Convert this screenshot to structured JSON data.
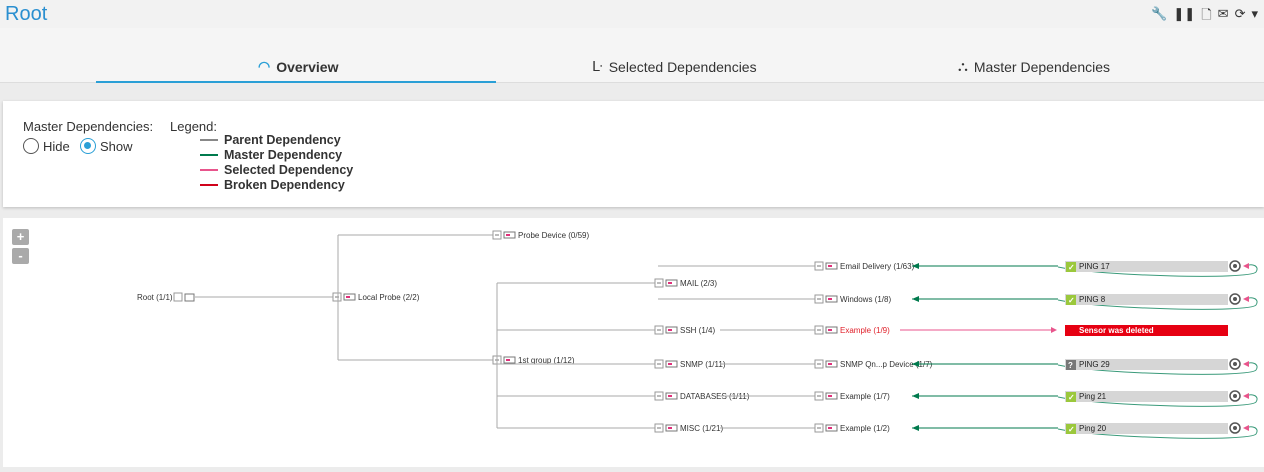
{
  "header": {
    "title": "Root",
    "icons": [
      "wrench-icon",
      "pause-icon",
      "add-document-icon",
      "mail-icon",
      "refresh-icon",
      "caret-down-icon"
    ]
  },
  "tabs": [
    {
      "label": "Overview",
      "icon": "gauge-icon",
      "active": true
    },
    {
      "label": "Selected Dependencies",
      "icon": "dependency-icon"
    },
    {
      "label": "Master Dependencies",
      "icon": "hierarchy-icon"
    }
  ],
  "options": {
    "master_label": "Master Dependencies:",
    "hide": "Hide",
    "show": "Show",
    "selected": "Show",
    "legend_label": "Legend:"
  },
  "legend": [
    {
      "label": "Parent Dependency",
      "color": "#888888"
    },
    {
      "label": "Master Dependency",
      "color": "#007a4d"
    },
    {
      "label": "Selected Dependency",
      "color": "#e8558c"
    },
    {
      "label": "Broken Dependency",
      "color": "#d0021b"
    }
  ],
  "zoom": {
    "in": "+",
    "out": "-"
  },
  "tree": {
    "root": "Root (1/1)",
    "probe": "Local Probe (2/2)",
    "probe_device": "Probe Device (0/59)",
    "group": "1st group (1/12)",
    "groups": [
      {
        "label": "MAIL (2/3)",
        "devices": [
          {
            "label": "Email Delivery (1/63)",
            "sensor": "PING 17",
            "status": "ok"
          },
          {
            "label": "Windows (1/8)",
            "sensor": "PING 8",
            "status": "ok"
          }
        ]
      },
      {
        "label": "SSH (1/4)",
        "devices": [
          {
            "label": "Example (1/9)",
            "sensor": "Sensor was deleted",
            "status": "deleted"
          }
        ]
      },
      {
        "label": "SNMP (1/11)",
        "devices": [
          {
            "label": "SNMP Qn...p Device (1/7)",
            "sensor": "PING 29",
            "status": "unknown"
          }
        ]
      },
      {
        "label": "DATABASES (1/11)",
        "devices": [
          {
            "label": "Example (1/7)",
            "sensor": "Ping 21",
            "status": "ok"
          }
        ]
      },
      {
        "label": "MISC (1/21)",
        "devices": [
          {
            "label": "Example (1/2)",
            "sensor": "Ping 20",
            "status": "ok"
          }
        ]
      }
    ]
  }
}
